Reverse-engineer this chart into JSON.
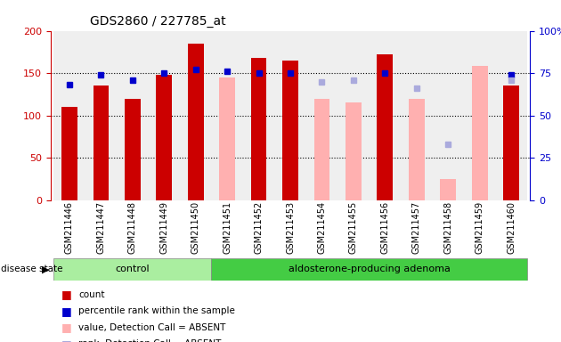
{
  "title": "GDS2860 / 227785_at",
  "samples": [
    "GSM211446",
    "GSM211447",
    "GSM211448",
    "GSM211449",
    "GSM211450",
    "GSM211451",
    "GSM211452",
    "GSM211453",
    "GSM211454",
    "GSM211455",
    "GSM211456",
    "GSM211457",
    "GSM211458",
    "GSM211459",
    "GSM211460"
  ],
  "control_count": 5,
  "adenoma_count": 10,
  "count_values": [
    110,
    135,
    120,
    148,
    185,
    null,
    168,
    165,
    null,
    null,
    172,
    null,
    null,
    null,
    135
  ],
  "count_absent_values": [
    null,
    null,
    null,
    null,
    null,
    145,
    null,
    null,
    120,
    115,
    null,
    120,
    25,
    158,
    null
  ],
  "percentile_values": [
    68,
    74,
    71,
    75,
    77,
    76,
    75,
    75,
    null,
    null,
    75,
    null,
    null,
    null,
    74
  ],
  "percentile_absent_values": [
    null,
    null,
    null,
    null,
    null,
    null,
    null,
    null,
    70,
    71,
    null,
    66,
    33,
    null,
    71
  ],
  "ylim_left": [
    0,
    200
  ],
  "ylim_right": [
    0,
    100
  ],
  "yticks_left": [
    0,
    50,
    100,
    150,
    200
  ],
  "yticks_right": [
    0,
    25,
    50,
    75,
    100
  ],
  "ytick_labels_right": [
    "0",
    "25",
    "50",
    "75",
    "100%"
  ],
  "count_color": "#cc0000",
  "count_absent_color": "#ffb0b0",
  "percentile_color": "#0000cc",
  "percentile_absent_color": "#aaaadd",
  "control_group_color": "#aaeea0",
  "adenoma_group_color": "#44cc44",
  "bar_width": 0.5
}
